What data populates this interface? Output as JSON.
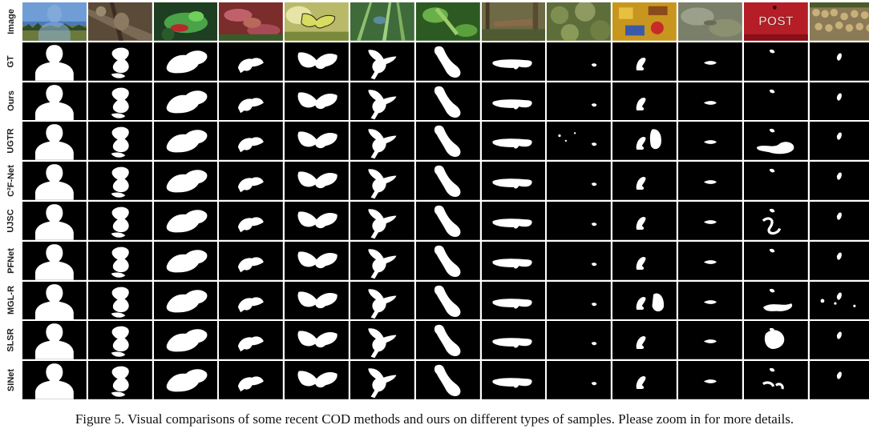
{
  "figure": {
    "row_labels": [
      "Image",
      "GT",
      "Ours",
      "UGTR",
      "C²F-Net",
      "UJSC",
      "PFNet",
      "MGL-R",
      "SLSR",
      "SINet"
    ],
    "columns": [
      "sky-person",
      "tree-bird",
      "frog",
      "pink-crab",
      "butterfly",
      "grass-insect",
      "green-stick",
      "branch",
      "bush",
      "yellow-toy",
      "moss-rock",
      "red-post-box",
      "woodpile"
    ],
    "colors": {
      "background": "#ffffff",
      "mask_fg": "#ffffff",
      "mask_bg": "#000000"
    },
    "post_box_text": "POST"
  },
  "caption": "Figure 5. Visual comparisons of some recent COD methods and ours on different types of samples. Please zoom in for more details."
}
